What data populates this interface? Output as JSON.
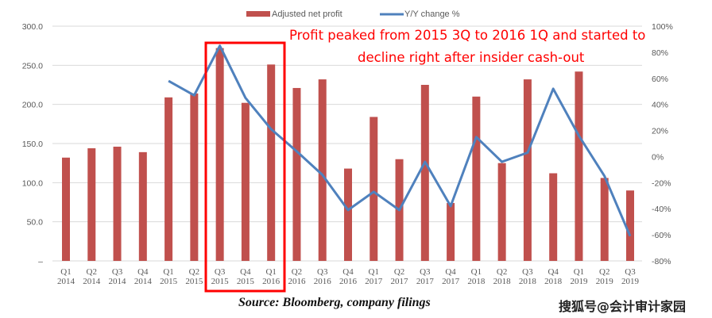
{
  "chart_data": {
    "type": "bar+line",
    "categories": [
      [
        "Q1",
        "2014"
      ],
      [
        "Q2",
        "2014"
      ],
      [
        "Q3",
        "2014"
      ],
      [
        "Q4",
        "2014"
      ],
      [
        "Q1",
        "2015"
      ],
      [
        "Q2",
        "2015"
      ],
      [
        "Q3",
        "2015"
      ],
      [
        "Q4",
        "2015"
      ],
      [
        "Q1",
        "2016"
      ],
      [
        "Q2",
        "2016"
      ],
      [
        "Q3",
        "2016"
      ],
      [
        "Q4",
        "2016"
      ],
      [
        "Q1",
        "2017"
      ],
      [
        "Q2",
        "2017"
      ],
      [
        "Q3",
        "2017"
      ],
      [
        "Q4",
        "2017"
      ],
      [
        "Q1",
        "2018"
      ],
      [
        "Q2",
        "2018"
      ],
      [
        "Q3",
        "2018"
      ],
      [
        "Q4",
        "2018"
      ],
      [
        "Q1",
        "2019"
      ],
      [
        "Q2",
        "2019"
      ],
      [
        "Q3",
        "2019"
      ]
    ],
    "series": [
      {
        "name": "Adjusted net profit",
        "type": "bar",
        "axis": "left",
        "color": "#c0504d",
        "values": [
          132,
          144,
          146,
          139,
          209,
          214,
          272,
          202,
          251,
          221,
          232,
          118,
          184,
          130,
          225,
          74,
          210,
          125,
          232,
          112,
          242,
          106,
          90
        ]
      },
      {
        "name": "Y/Y change %",
        "type": "line",
        "axis": "right",
        "color": "#4f81bd",
        "values": [
          null,
          null,
          null,
          null,
          58,
          47,
          85,
          45,
          21,
          4,
          -14,
          -41,
          -27,
          -41,
          -4,
          -38,
          15,
          -4,
          3,
          52,
          16,
          -15,
          -61
        ]
      }
    ],
    "left_axis": {
      "ylim": [
        0,
        300
      ],
      "ticks": [
        "–",
        "50.0",
        "100.0",
        "150.0",
        "200.0",
        "250.0",
        "300.0"
      ]
    },
    "right_axis": {
      "ylim": [
        -80,
        100
      ],
      "ticks": [
        "-80%",
        "-60%",
        "-40%",
        "-20%",
        "0%",
        "20%",
        "40%",
        "60%",
        "80%",
        "100%"
      ]
    },
    "grid": true,
    "legend": "top-center",
    "annotation": {
      "line1": "Profit peaked from 2015 3Q to 2016 1Q and started to",
      "line2": "decline right after insider cash-out",
      "color": "#ff0000",
      "highlight": [
        "Q3 2015",
        "Q1 2016"
      ]
    }
  },
  "source": "Source: Bloomberg, company filings",
  "watermark": "搜狐号@会计审计家园"
}
